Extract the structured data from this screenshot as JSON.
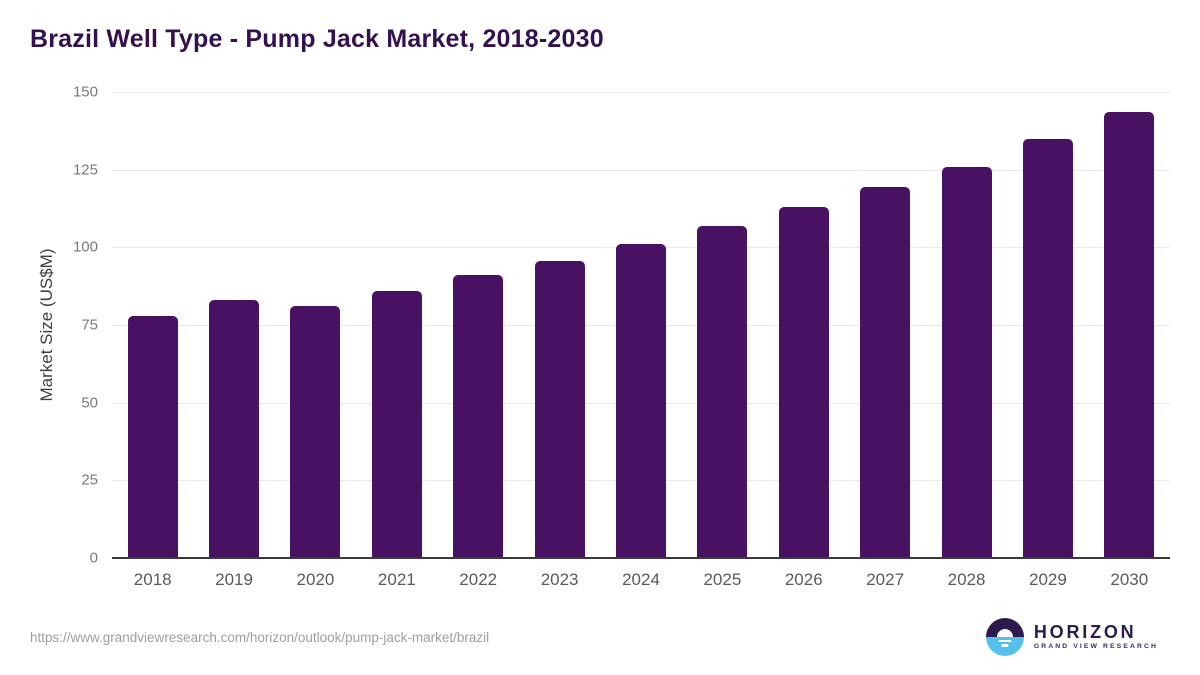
{
  "title": "Brazil Well Type - Pump Jack Market, 2018-2030",
  "source_url": "https://www.grandviewresearch.com/horizon/outlook/pump-jack-market/brazil",
  "logo": {
    "name": "HORIZON",
    "subtitle": "GRAND VIEW RESEARCH",
    "icon": "horizon-sun-icon"
  },
  "colors": {
    "bar": "#481162",
    "title_text": "#33114f",
    "gridline": "#e9e9e9",
    "axis_line": "#3b3b3b",
    "y_tick_text": "#7a7a7a",
    "x_tick_text": "#5a5a5a",
    "url_text": "#9e9e9e",
    "logo_purple": "#2d1b4e",
    "logo_blue": "#55c0e9"
  },
  "chart_data": {
    "type": "bar",
    "title": "Brazil Well Type - Pump Jack Market, 2018-2030",
    "categories": [
      "2018",
      "2019",
      "2020",
      "2021",
      "2022",
      "2023",
      "2024",
      "2025",
      "2026",
      "2027",
      "2028",
      "2029",
      "2030"
    ],
    "values": [
      78,
      83,
      81,
      86,
      91,
      95.5,
      101,
      107,
      113,
      119.5,
      126,
      135,
      143.5
    ],
    "xlabel": "",
    "ylabel": "Market Size (US$M)",
    "ylim": [
      0,
      150
    ],
    "yticks": [
      0,
      25,
      50,
      75,
      100,
      125,
      150
    ],
    "grid": true,
    "legend": "none",
    "bar_color": "#481162"
  }
}
